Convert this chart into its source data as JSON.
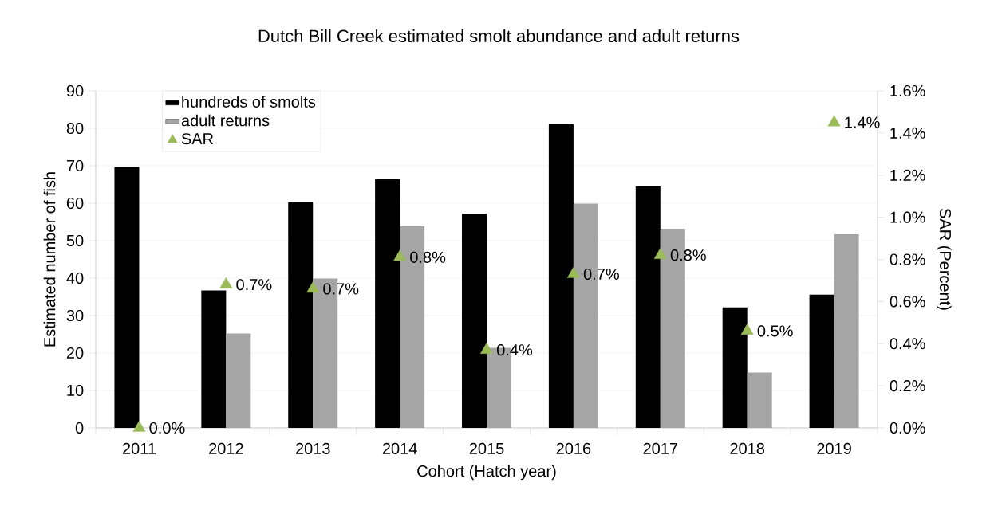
{
  "chart_data": {
    "type": "bar",
    "title": "Dutch Bill Creek estimated smolt abundance and adult returns",
    "xlabel": "Cohort (Hatch year)",
    "ylabel": "Estimated number of fish",
    "y2label": "SAR (Percent)",
    "categories": [
      "2011",
      "2012",
      "2013",
      "2014",
      "2015",
      "2016",
      "2017",
      "2018",
      "2019"
    ],
    "series": [
      {
        "name": "hundreds of smolts",
        "color": "#000000",
        "values": [
          69.7,
          36.7,
          60.2,
          66.5,
          57.2,
          81.1,
          64.5,
          32.2,
          35.6
        ]
      },
      {
        "name": "adult returns",
        "color": "#a5a5a5",
        "values": [
          0,
          25.2,
          39.9,
          53.9,
          21.4,
          59.9,
          53.2,
          14.8,
          51.7
        ]
      },
      {
        "name": "SAR",
        "type": "scatter",
        "axis": "y2",
        "marker": "triangle",
        "color": "#9bbb59",
        "values": [
          0,
          0.68,
          0.66,
          0.81,
          0.37,
          0.73,
          0.82,
          0.46,
          1.45
        ],
        "value_labels": [
          "0.0%",
          "0.7%",
          "0.7%",
          "0.8%",
          "0.4%",
          "0.7%",
          "0.8%",
          "0.5%",
          "1.4%"
        ]
      }
    ],
    "ylim": [
      0,
      90
    ],
    "yticks": [
      0,
      10,
      20,
      30,
      40,
      50,
      60,
      70,
      80,
      90
    ],
    "y2lim": [
      0,
      1.6
    ],
    "y2ticks": [
      {
        "value": 0,
        "label": "0.0%"
      },
      {
        "value": 0.2,
        "label": "0.2%"
      },
      {
        "value": 0.4,
        "label": "0.4%"
      },
      {
        "value": 0.6,
        "label": "0.6%"
      },
      {
        "value": 0.8,
        "label": "0.8%"
      },
      {
        "value": 1.0,
        "label": "1.0%"
      },
      {
        "value": 1.2,
        "label": "1.2%"
      },
      {
        "value": 1.4,
        "label": "1.4%"
      },
      {
        "value": 1.6,
        "label": "1.6%"
      }
    ],
    "grid": "y",
    "legend": "top left"
  }
}
